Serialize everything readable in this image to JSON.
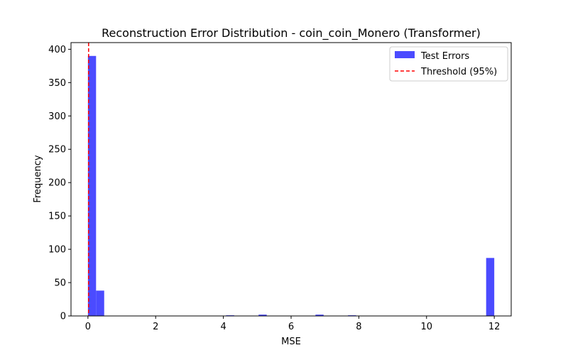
{
  "chart_data": {
    "type": "bar",
    "title": "Reconstruction Error Distribution - coin_coin_Monero (Transformer)",
    "xlabel": "MSE",
    "ylabel": "Frequency",
    "xlim": [
      -0.5,
      12.5
    ],
    "ylim": [
      0,
      410
    ],
    "xticks": [
      0,
      2,
      4,
      6,
      8,
      10,
      12
    ],
    "yticks": [
      0,
      50,
      100,
      150,
      200,
      250,
      300,
      350,
      400
    ],
    "bin_width": 0.24,
    "bins": [
      {
        "x": 0.0,
        "count": 390
      },
      {
        "x": 0.24,
        "count": 38
      },
      {
        "x": 4.08,
        "count": 1
      },
      {
        "x": 5.04,
        "count": 2
      },
      {
        "x": 6.72,
        "count": 2
      },
      {
        "x": 7.68,
        "count": 1
      },
      {
        "x": 11.76,
        "count": 87
      }
    ],
    "threshold": 0.02,
    "legend": {
      "position": "top-right",
      "items": [
        {
          "label": "Test Errors",
          "kind": "patch",
          "color": "#4b4bff"
        },
        {
          "label": "Threshold (95%)",
          "kind": "dashed-line",
          "color": "#ff0000"
        }
      ]
    },
    "colors": {
      "bar": "#4b4bff",
      "threshold": "#ff0000"
    }
  }
}
